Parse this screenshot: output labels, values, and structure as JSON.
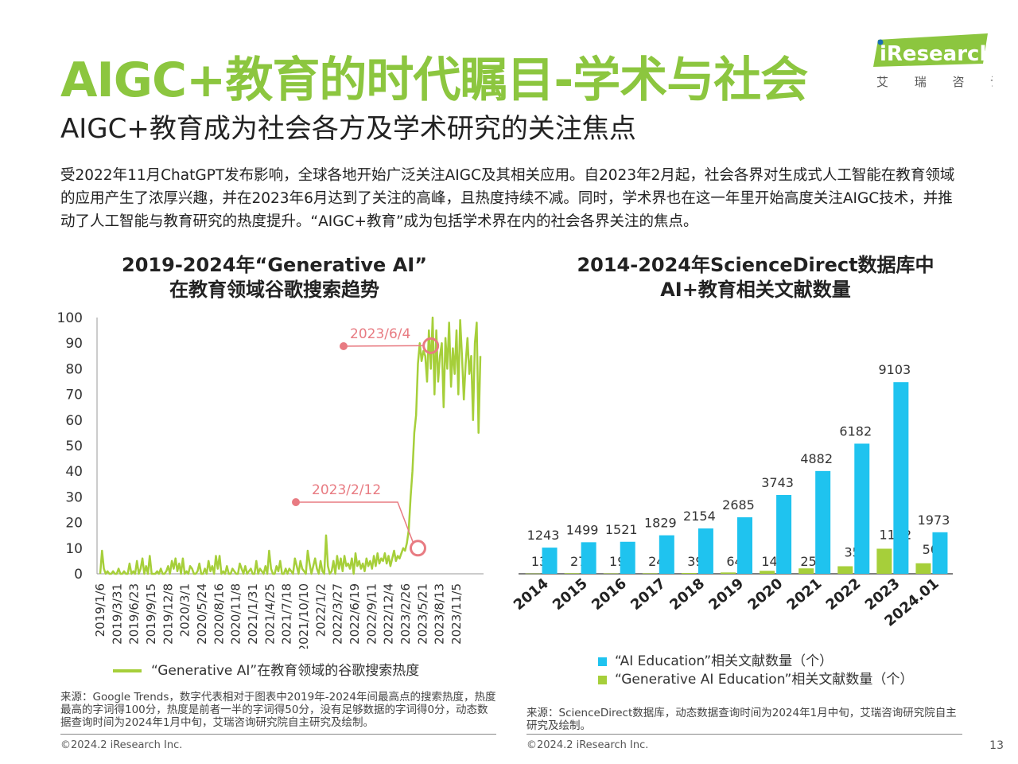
{
  "header": {
    "title": "AIGC+教育的时代瞩目-学术与社会",
    "subtitle": "AIGC+教育成为社会各方及学术研究的关注焦点",
    "intro": "受2022年11月ChatGPT发布影响，全球各地开始广泛关注AIGC及其相关应用。自2023年2月起，社会各界对生成式人工智能在教育领域的应用产生了浓厚兴趣，并在2023年6月达到了关注的高峰，且热度持续不减。同时，学术界也在这一年里开始高度关注AIGC技术，并推动了人工智能与教育研究的热度提升。“AIGC+教育”成为包括学术界在内的社会各界关注的焦点。"
  },
  "logo": {
    "brand": "iResearch",
    "chinese": "艾 瑞 咨 询",
    "color": "#8cc63f"
  },
  "colors": {
    "accent": "#8cc63f",
    "line": "#a6cf3a",
    "blue": "#1fc3ef",
    "annotation": "#e87b82"
  },
  "chart_data": [
    {
      "type": "line",
      "title_line1": "2019-2024年“Generative AI”",
      "title_line2": "在教育领域谷歌搜索趋势",
      "ylim": [
        0,
        100
      ],
      "yticks": [
        0,
        10,
        20,
        30,
        40,
        50,
        60,
        70,
        80,
        90,
        100
      ],
      "xtick_labels": [
        "2019/1/6",
        "2019/3/31",
        "2019/6/23",
        "2019/9/15",
        "2019/12/8",
        "2020/3/1",
        "2020/5/24",
        "2020/8/16",
        "2020/11/8",
        "2021/1/31",
        "2021/4/25",
        "2021/7/18",
        "2021/10/10",
        "2022/1/2",
        "2022/3/27",
        "2022/6/19",
        "2022/9/11",
        "2022/12/4",
        "2023/2/26",
        "2023/5/21",
        "2023/8/13",
        "2023/11/5"
      ],
      "series": [
        {
          "name": "“Generative AI”在教育领域的谷歌搜索热度",
          "values": [
            0,
            9,
            2,
            0,
            1,
            0,
            0,
            1,
            0,
            0,
            2,
            0,
            0,
            1,
            0,
            0,
            4,
            0,
            1,
            0,
            5,
            0,
            2,
            6,
            0,
            3,
            0,
            7,
            0,
            0,
            0,
            1,
            0,
            2,
            0,
            0,
            1,
            3,
            0,
            5,
            2,
            6,
            1,
            4,
            0,
            6,
            0,
            1,
            0,
            3,
            2,
            0,
            0,
            1,
            4,
            0,
            0,
            2,
            0,
            5,
            1,
            3,
            0,
            7,
            2,
            7,
            0,
            1,
            0,
            3,
            0,
            0,
            2,
            1,
            0,
            0,
            4,
            2,
            0,
            3,
            0,
            1,
            2,
            0,
            0,
            5,
            0,
            2,
            1,
            0,
            3,
            0,
            9,
            2,
            0,
            0,
            3,
            1,
            5,
            0,
            0,
            2,
            0,
            2,
            1,
            0,
            6,
            3,
            0,
            5,
            2,
            1,
            0,
            9,
            4,
            0,
            3,
            6,
            2,
            0,
            5,
            1,
            0,
            15,
            3,
            0,
            1,
            5,
            0,
            7,
            2,
            6,
            1,
            7,
            3,
            4,
            2,
            6,
            0,
            8,
            3,
            5,
            2,
            4,
            1,
            6,
            3,
            5,
            2,
            7,
            3,
            8,
            4,
            6,
            5,
            8,
            4,
            7,
            3,
            6,
            9,
            5,
            7,
            6,
            8,
            10,
            9,
            12,
            17,
            30,
            40,
            55,
            62,
            82,
            90,
            83,
            87,
            85,
            75,
            95,
            80,
            100,
            70,
            95,
            75,
            85,
            90,
            65,
            92,
            80,
            98,
            73,
            88,
            78,
            95,
            70,
            99,
            85,
            68,
            82,
            92,
            78,
            85,
            60,
            90,
            98,
            55,
            85
          ],
          "annotations": [
            {
              "label": "2023/2/12",
              "value": 10
            },
            {
              "label": "2023/6/4",
              "value": 89
            }
          ]
        }
      ]
    },
    {
      "type": "bar",
      "title_line1": "2014-2024年ScienceDirect数据库中",
      "title_line2": "AI+教育相关文献数量",
      "categories": [
        "2014",
        "2015",
        "2016",
        "2017",
        "2018",
        "2019",
        "2020",
        "2021",
        "2022",
        "2023",
        "2024.01"
      ],
      "series": [
        {
          "name": "“AI Education”相关文献数量（个）",
          "values": [
            1243,
            1499,
            1521,
            1829,
            2154,
            2685,
            3743,
            4882,
            6182,
            9103,
            1973
          ]
        },
        {
          "name": "“Generative AI Education”相关文献数量（个）",
          "values": [
            13,
            27,
            19,
            24,
            39,
            64,
            142,
            257,
            359,
            1192,
            500
          ]
        }
      ],
      "ylim": [
        0,
        11000
      ]
    }
  ],
  "footer": {
    "left_source": "来源：Google Trends，数字代表相对于图表中2019年-2024年间最高点的搜索热度，热度最高的字词得100分，热度是前者一半的字词得50分，没有足够数据的字词得0分，动态数据查询时间为2024年1月中旬，艾瑞咨询研究院自主研究及绘制。",
    "right_source": "来源：ScienceDirect数据库，动态数据查询时间为2024年1月中旬，艾瑞咨询研究院自主研究及绘制。",
    "copyright": "©2024.2 iResearch Inc.",
    "page_number": "13"
  }
}
